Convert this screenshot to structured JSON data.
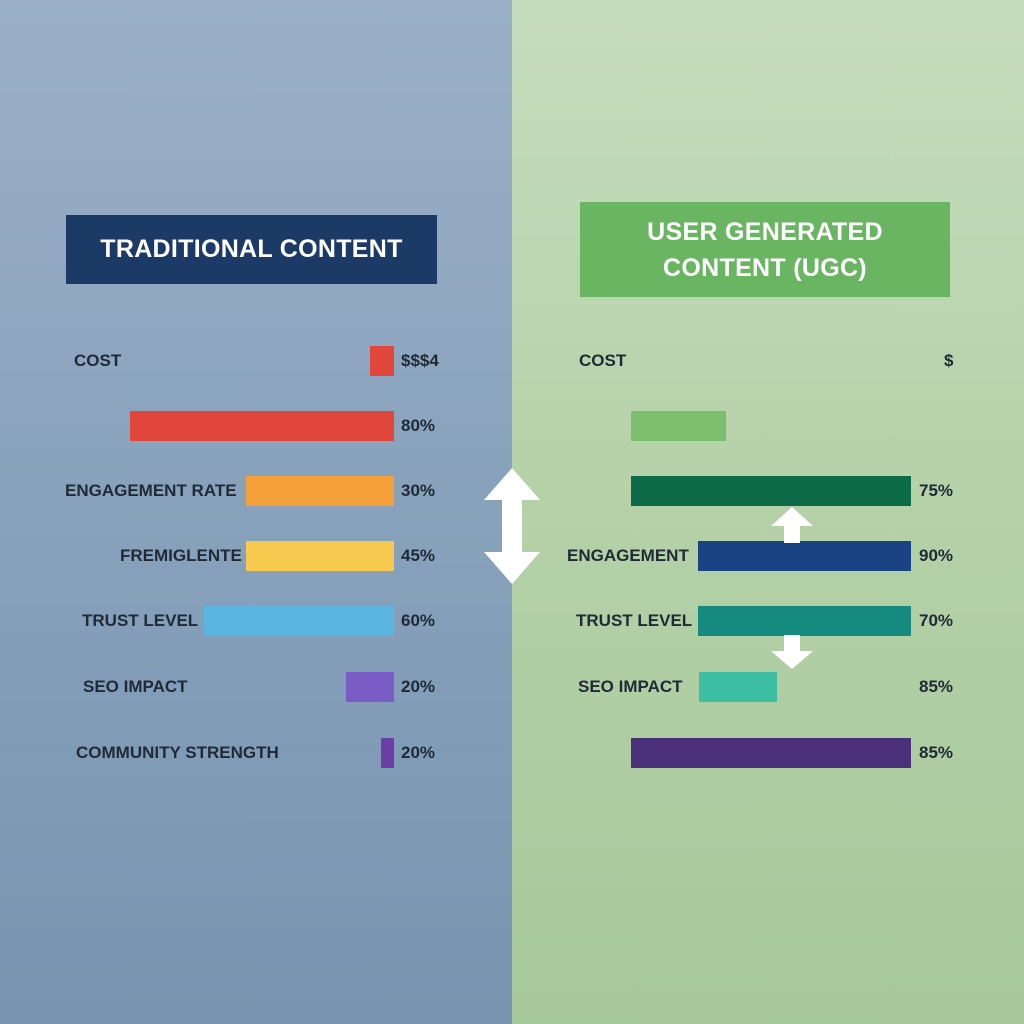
{
  "left": {
    "title": "TRADITIONAL CONTENT",
    "title_bg": "#1b3a66",
    "rows": [
      {
        "label": "COST",
        "value": "$$$4",
        "fraction": 0.09,
        "color": "#e0473a"
      },
      {
        "label": "",
        "value": "80%",
        "fraction": 1.0,
        "color": "#e0473a"
      },
      {
        "label": "ENGAGEMENT RATE",
        "value": "30%",
        "fraction": 0.56,
        "color": "#f4a13a"
      },
      {
        "label": "FREMIGLENTE",
        "value": "45%",
        "fraction": 0.56,
        "color": "#f7c94f"
      },
      {
        "label": "TRUST LEVEL",
        "value": "60%",
        "fraction": 0.72,
        "color": "#5ab6e0"
      },
      {
        "label": "SEO IMPACT",
        "value": "20%",
        "fraction": 0.18,
        "color": "#7a5cc6"
      },
      {
        "label": "COMMUNITY STRENGTH",
        "value": "20%",
        "fraction": 0.05,
        "color": "#6b3fa6"
      }
    ]
  },
  "right": {
    "title": "USER GENERATED\nCONTENT (UGC)",
    "title_bg": "#6ab562",
    "rows": [
      {
        "label": "COST",
        "value": "$",
        "fraction": 0.0,
        "color": "#7cc06f"
      },
      {
        "label": "",
        "value": "",
        "fraction": 0.34,
        "color": "#7cc06f"
      },
      {
        "label": "",
        "value": "75%",
        "fraction": 1.0,
        "color": "#0e6b4a"
      },
      {
        "label": "ENGAGEMENT",
        "value": "90%",
        "fraction": 0.76,
        "color": "#1a4383"
      },
      {
        "label": "TRUST LEVEL",
        "value": "70%",
        "fraction": 0.76,
        "color": "#178a80"
      },
      {
        "label": "SEO IMPACT",
        "value": "85%",
        "fraction": 0.28,
        "color": "#3dbda2"
      },
      {
        "label": "",
        "value": "85%",
        "fraction": 1.0,
        "color": "#4a2f7a"
      }
    ]
  },
  "chart_data": [
    {
      "type": "bar",
      "title": "TRADITIONAL CONTENT",
      "categories": [
        "COST",
        "",
        "ENGAGEMENT RATE",
        "FREMIGLENTE",
        "TRUST LEVEL",
        "SEO IMPACT",
        "COMMUNITY STRENGTH"
      ],
      "value_labels": [
        "$$$4",
        "80%",
        "30%",
        "45%",
        "60%",
        "20%",
        "20%"
      ],
      "bar_fraction": [
        0.09,
        1.0,
        0.56,
        0.56,
        0.72,
        0.18,
        0.05
      ]
    },
    {
      "type": "bar",
      "title": "USER GENERATED CONTENT (UGC)",
      "categories": [
        "COST",
        "",
        "",
        "ENGAGEMENT",
        "TRUST LEVEL",
        "SEO IMPACT",
        ""
      ],
      "value_labels": [
        "$",
        "",
        "75%",
        "90%",
        "70%",
        "85%",
        "85%"
      ],
      "bar_fraction": [
        0.0,
        0.34,
        1.0,
        0.76,
        0.76,
        0.28,
        1.0
      ]
    }
  ]
}
